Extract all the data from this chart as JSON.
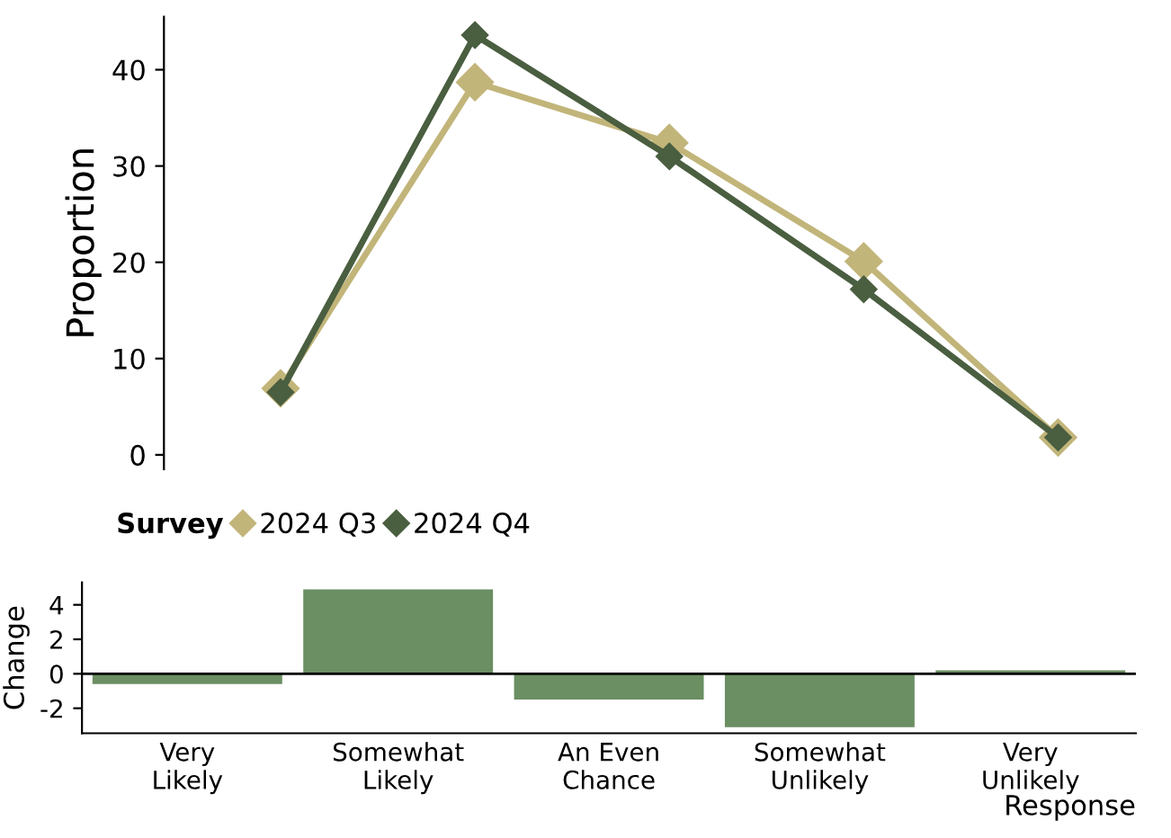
{
  "chart_data": [
    {
      "type": "line",
      "ylabel": "Proportion",
      "legend_title": "Survey",
      "legend": "bottom left",
      "marker": "diamond",
      "line_style": "solid",
      "tick_labels": "y",
      "grid": false,
      "categories": [
        null,
        null,
        null,
        null,
        null
      ],
      "ylim": [
        -1.5,
        45.5
      ],
      "yticks": [
        0,
        10,
        20,
        30,
        40
      ],
      "series": [
        {
          "name": "2024 Q3",
          "color": "#c2b57a",
          "values": [
            6.9,
            38.7,
            32.4,
            20.1,
            1.8
          ]
        },
        {
          "name": "2024 Q4",
          "color": "#4a5e40",
          "values": [
            6.5,
            43.6,
            31.0,
            17.2,
            1.8
          ]
        }
      ]
    },
    {
      "type": "bar",
      "xlabel": "Response",
      "ylabel": "Change",
      "grid": false,
      "categories": [
        "Very\nLikely",
        "Somewhat\nLikely",
        "An Even\nChance",
        "Somewhat\nUnlikely",
        "Very\nUnlikely"
      ],
      "values": [
        -0.6,
        4.9,
        -1.5,
        -3.1,
        0.2
      ],
      "color": "#6b8e62",
      "ylim": [
        -3.45,
        5.3
      ],
      "yticks": [
        -2,
        0,
        2,
        4
      ],
      "ref_lines": [
        {
          "axis": "y",
          "value": 0,
          "color": "#000000"
        }
      ]
    }
  ]
}
